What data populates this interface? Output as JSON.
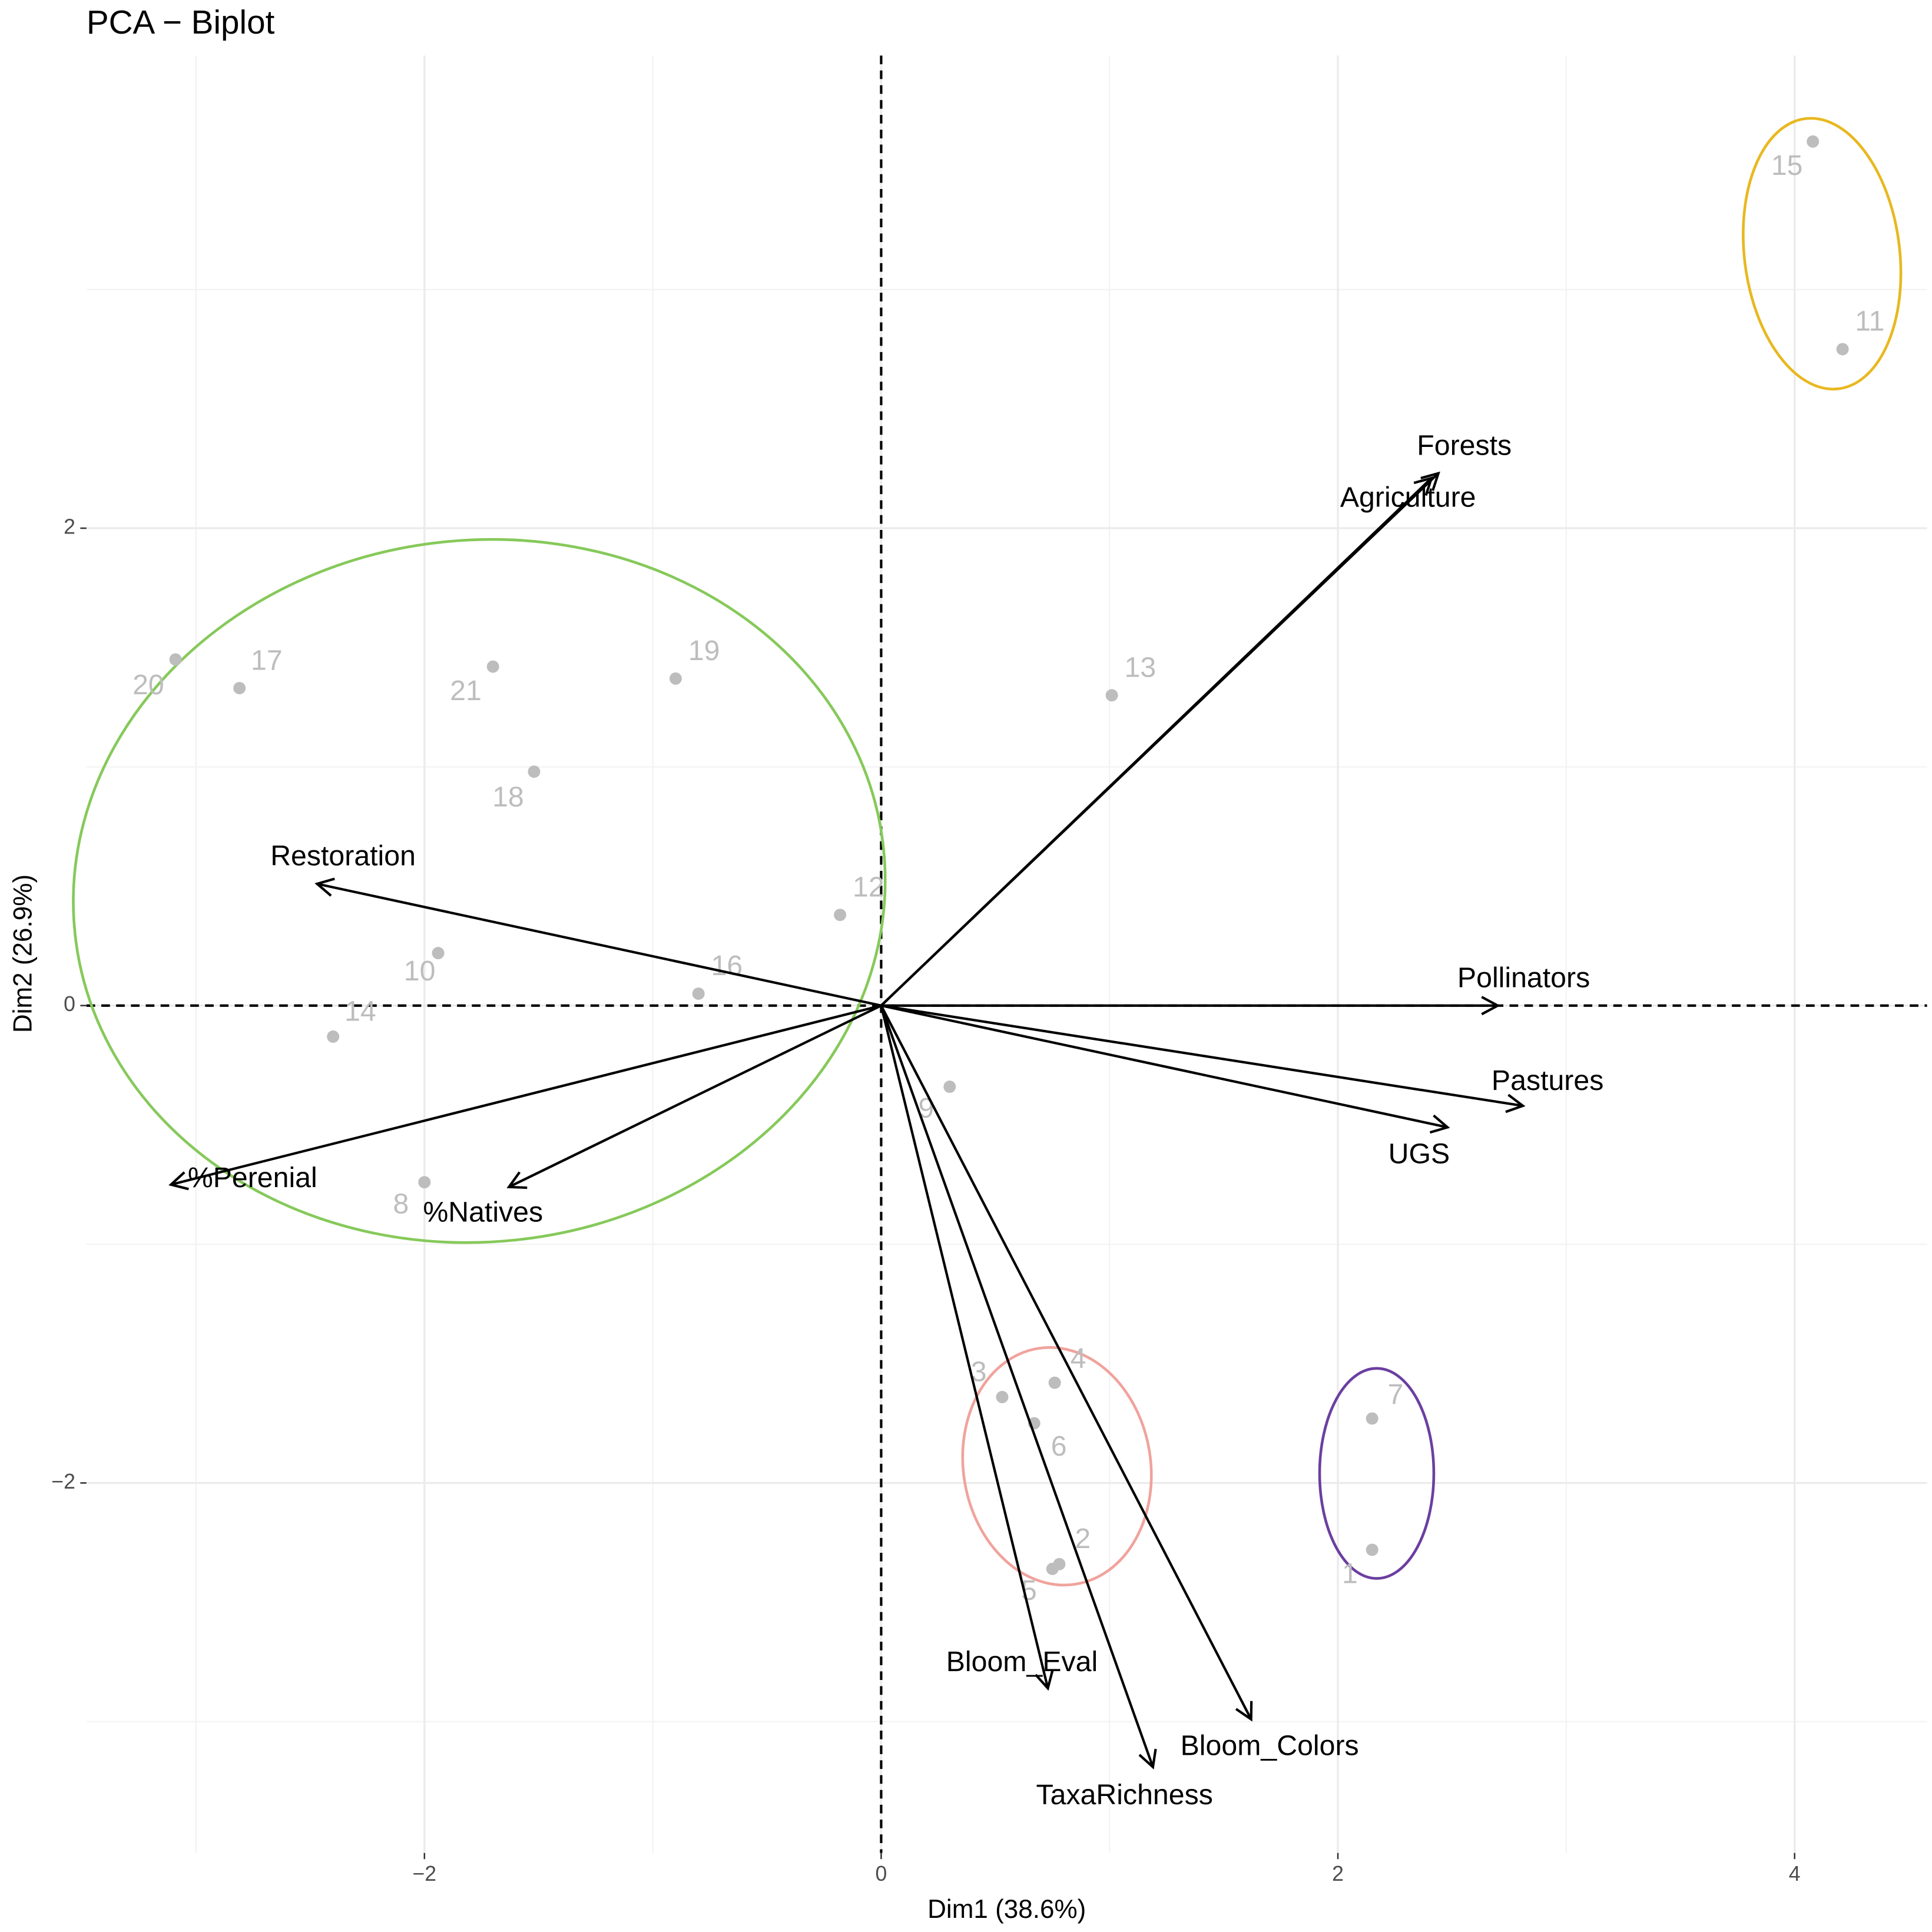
{
  "chart_data": {
    "type": "biplot",
    "title": "PCA − Biplot",
    "x_label": "Dim1 (38.6%)",
    "y_label": "Dim2 (26.9%)",
    "xlim": [
      -3.48,
      4.58
    ],
    "ylim": [
      -3.55,
      3.98
    ],
    "xticks": [
      {
        "value": -2,
        "label": "−2"
      },
      0,
      2,
      4
    ],
    "yticks": [
      {
        "value": -2,
        "label": "−2"
      },
      0,
      2
    ],
    "x_minor_grid": [
      -3,
      -1,
      1,
      3
    ],
    "y_minor_grid": [
      -3,
      -1,
      1,
      3
    ],
    "grid": true,
    "points": {
      "color": "#bdbdbd",
      "labels": [
        "1",
        "2",
        "3",
        "4",
        "5",
        "6",
        "7",
        "8",
        "9",
        "10",
        "11",
        "12",
        "13",
        "14",
        "15",
        "16",
        "17",
        "18",
        "19",
        "20",
        "21"
      ],
      "x": [
        2.15,
        0.78,
        0.53,
        0.76,
        0.75,
        0.67,
        2.15,
        -2.0,
        0.3,
        -1.94,
        4.21,
        -0.18,
        1.01,
        -2.4,
        4.08,
        -0.8,
        -2.81,
        -1.52,
        -0.9,
        -3.09,
        -1.7
      ],
      "y": [
        -2.28,
        -2.34,
        -1.64,
        -1.58,
        -2.36,
        -1.75,
        -1.73,
        -0.74,
        -0.34,
        0.22,
        2.75,
        0.38,
        1.3,
        -0.13,
        3.62,
        0.05,
        1.33,
        0.98,
        1.37,
        1.45,
        1.42
      ]
    },
    "variables": {
      "color": "#000000",
      "names": [
        "Forests",
        "Agriculture",
        "Pollinators",
        "Pastures",
        "UGS",
        "Bloom_Colors",
        "TaxaRichness",
        "Bloom_Eval",
        "%Natives",
        "%Perenial",
        "Restoration"
      ],
      "x": [
        2.44,
        2.41,
        2.7,
        2.81,
        2.48,
        1.62,
        1.19,
        0.73,
        -1.63,
        -3.11,
        -2.47
      ],
      "y": [
        2.23,
        2.21,
        0.0,
        -0.42,
        -0.51,
        -2.99,
        -3.19,
        -2.86,
        -0.76,
        -0.75,
        0.51
      ]
    },
    "ellipses": [
      {
        "color": "#86c95a",
        "center": [
          -1.76,
          0.48
        ],
        "radii": [
          1.78,
          1.47
        ],
        "angle": -6
      },
      {
        "color": "#f0a39c",
        "center": [
          0.77,
          -1.93
        ],
        "radii": [
          0.41,
          0.5
        ],
        "angle": -9
      },
      {
        "color": "#6b3fa0",
        "center": [
          2.17,
          -1.96
        ],
        "radii": [
          0.25,
          0.44
        ],
        "angle": 0
      },
      {
        "color": "#e8b820",
        "center": [
          4.12,
          3.15
        ],
        "radii": [
          0.34,
          0.57
        ],
        "angle": -7
      }
    ]
  }
}
